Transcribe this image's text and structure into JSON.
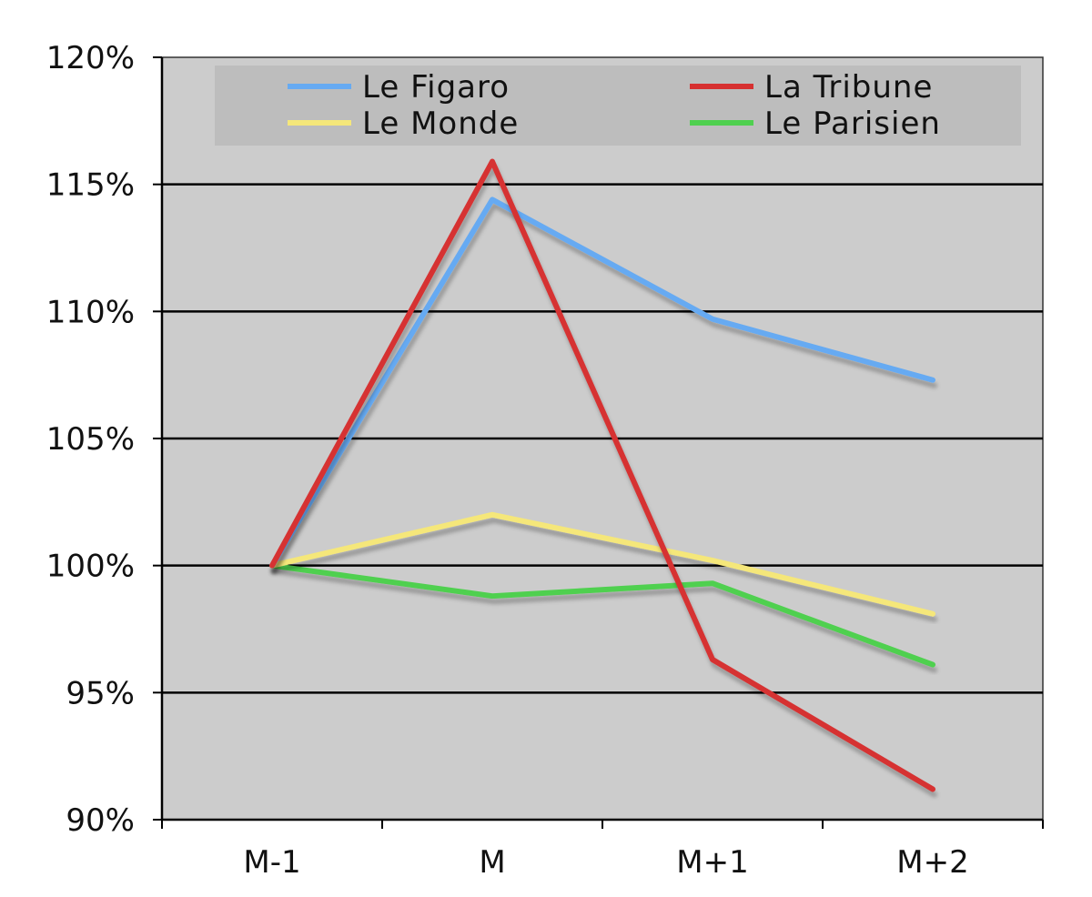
{
  "chart_data": {
    "type": "line",
    "title": "",
    "xlabel": "",
    "ylabel": "",
    "categories": [
      "M-1",
      "M",
      "M+1",
      "M+2"
    ],
    "ylim": [
      90,
      120
    ],
    "yticks": [
      90,
      95,
      100,
      105,
      110,
      115,
      120
    ],
    "ytick_labels": [
      "90%",
      "95%",
      "100%",
      "105%",
      "110%",
      "115%",
      "120%"
    ],
    "grid": true,
    "legend_position": "top",
    "background_color": "#cccccc",
    "series": [
      {
        "name": "Le Figaro",
        "color": "#66aaf2",
        "values": [
          100,
          114.4,
          109.7,
          107.3
        ]
      },
      {
        "name": "La Tribune",
        "color": "#d63030",
        "values": [
          100,
          115.9,
          96.3,
          91.2
        ]
      },
      {
        "name": "Le Monde",
        "color": "#f5e77a",
        "values": [
          100,
          102.0,
          100.2,
          98.1
        ]
      },
      {
        "name": "Le Parisien",
        "color": "#4fd04f",
        "values": [
          100,
          98.8,
          99.3,
          96.1
        ]
      }
    ]
  }
}
